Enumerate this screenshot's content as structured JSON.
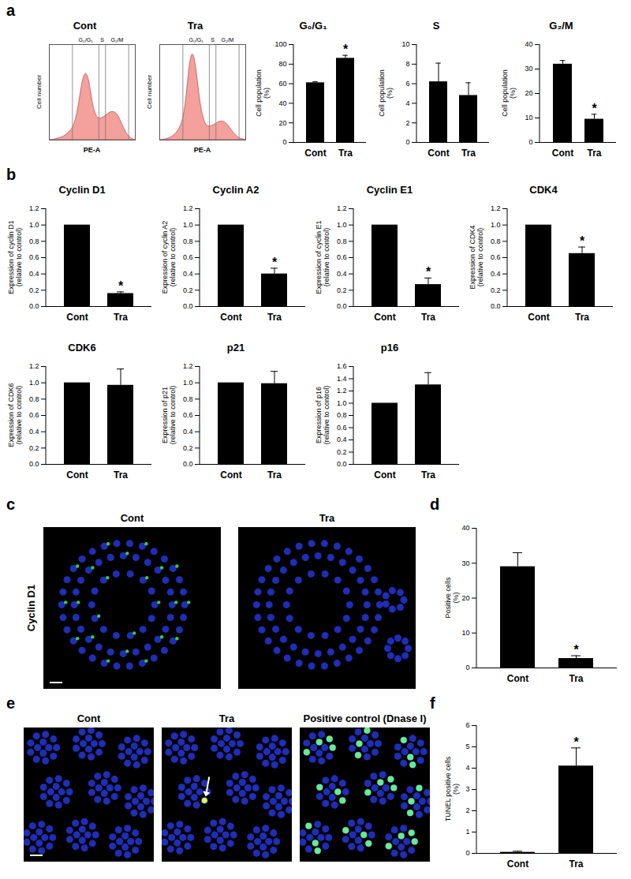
{
  "chart_data": [
    {
      "panel": "a",
      "type": "area",
      "title": "Cont",
      "xlabel": "PE-A",
      "ylabel": "Cell number",
      "x": [
        0,
        10000,
        20000,
        30000,
        40000,
        50000,
        60000,
        70000,
        80000,
        90000,
        100000,
        110000,
        120000,
        130000,
        140000,
        150000,
        160000,
        170000,
        180000,
        190000,
        200000,
        210000,
        220000,
        230000,
        240000,
        250000,
        260000
      ],
      "values": [
        0,
        0,
        1,
        2,
        3,
        5,
        8,
        12,
        20,
        38,
        62,
        72,
        65,
        40,
        26,
        22,
        23,
        25,
        28,
        30,
        29,
        25,
        17,
        9,
        4,
        1,
        0
      ],
      "xlim": [
        0,
        260000
      ],
      "ylim": [
        0,
        100
      ],
      "tick_labels": false,
      "color": "#f4a09c",
      "gates": [
        70000,
        150000,
        170000,
        240000
      ],
      "gate_labels": [
        "G₀/G₁",
        "S",
        "G₂/M"
      ]
    },
    {
      "type": "area",
      "title": "Tra",
      "xlabel": "PE-A",
      "ylabel": "Cell number",
      "x": [
        0,
        10000,
        20000,
        30000,
        40000,
        50000,
        60000,
        70000,
        80000,
        90000,
        100000,
        110000,
        120000,
        130000,
        140000,
        150000,
        160000,
        170000,
        180000,
        190000,
        200000,
        210000,
        220000,
        230000,
        240000,
        250000,
        260000
      ],
      "values": [
        0,
        0,
        1,
        2,
        4,
        7,
        12,
        20,
        40,
        80,
        95,
        78,
        45,
        25,
        15,
        14,
        15,
        17,
        19,
        20,
        18,
        14,
        9,
        5,
        2,
        1,
        0
      ],
      "xlim": [
        0,
        260000
      ],
      "ylim": [
        0,
        100
      ],
      "tick_labels": false,
      "color": "#f4a09c",
      "gates": [
        70000,
        150000,
        170000,
        240000
      ],
      "gate_labels": [
        "G₀/G₁",
        "S",
        "G₂/M"
      ]
    },
    {
      "type": "bar",
      "title": "G₀/G₁",
      "ylabel": "Cell population (%)",
      "categories": [
        "Cont",
        "Tra"
      ],
      "values": [
        61,
        86
      ],
      "errors": [
        1,
        3
      ],
      "ylim": [
        0,
        100
      ],
      "yticks": [
        0,
        20,
        40,
        60,
        80,
        100
      ],
      "color": "#000000",
      "annotations": [
        {
          "category": "Tra",
          "text": "*"
        }
      ]
    },
    {
      "type": "bar",
      "title": "S",
      "ylabel": "Cell population (%)",
      "categories": [
        "Cont",
        "Tra"
      ],
      "values": [
        6.2,
        4.8
      ],
      "errors": [
        1.9,
        1.3
      ],
      "ylim": [
        0,
        10
      ],
      "yticks": [
        0,
        2,
        4,
        6,
        8,
        10
      ],
      "color": "#000000",
      "annotations": []
    },
    {
      "type": "bar",
      "title": "G₂/M",
      "ylabel": "Cell population (%)",
      "categories": [
        "Cont",
        "Tra"
      ],
      "values": [
        32,
        9.5
      ],
      "errors": [
        1.5,
        2
      ],
      "ylim": [
        0,
        40
      ],
      "yticks": [
        0,
        10,
        20,
        30,
        40
      ],
      "color": "#000000",
      "annotations": [
        {
          "category": "Tra",
          "text": "*"
        }
      ]
    },
    {
      "panel": "b",
      "type": "bar",
      "title": "Cyclin D1",
      "ylabel": "Expression of cyclin D1 (relative to control)",
      "categories": [
        "Cont",
        "Tra"
      ],
      "values": [
        1,
        0.16
      ],
      "errors": [
        0,
        0.02
      ],
      "ylim": [
        0,
        1.2
      ],
      "yticks": [
        {
          "value": 0,
          "label": "0.0"
        },
        0.2,
        0.4,
        0.6,
        0.8,
        {
          "value": 1,
          "label": "1.0"
        },
        1.2
      ],
      "color": "#000000",
      "annotations": [
        {
          "category": "Tra",
          "text": "*"
        }
      ]
    },
    {
      "type": "bar",
      "title": "Cyclin A2",
      "ylabel": "Expression of cyclin A2 (relative to control)",
      "categories": [
        "Cont",
        "Tra"
      ],
      "values": [
        1,
        0.4
      ],
      "errors": [
        0,
        0.07
      ],
      "ylim": [
        0,
        1.2
      ],
      "yticks": [
        {
          "value": 0,
          "label": "0.0"
        },
        0.2,
        0.4,
        0.6,
        0.8,
        {
          "value": 1,
          "label": "1.0"
        },
        1.2
      ],
      "color": "#000000",
      "annotations": [
        {
          "category": "Tra",
          "text": "*"
        }
      ]
    },
    {
      "type": "bar",
      "title": "Cyclin E1",
      "ylabel": "Expression of cyclin E1 (relative to control)",
      "categories": [
        "Cont",
        "Tra"
      ],
      "values": [
        1,
        0.27
      ],
      "errors": [
        0,
        0.08
      ],
      "ylim": [
        0,
        1.2
      ],
      "yticks": [
        {
          "value": 0,
          "label": "0.0"
        },
        0.2,
        0.4,
        0.6,
        0.8,
        {
          "value": 1,
          "label": "1.0"
        },
        1.2
      ],
      "color": "#000000",
      "annotations": [
        {
          "category": "Tra",
          "text": "*"
        }
      ]
    },
    {
      "type": "bar",
      "title": "CDK4",
      "ylabel": "Expression of CDK4 (relative to control)",
      "categories": [
        "Cont",
        "Tra"
      ],
      "values": [
        1,
        0.65
      ],
      "errors": [
        0,
        0.08
      ],
      "ylim": [
        0,
        1.2
      ],
      "yticks": [
        {
          "value": 0,
          "label": "0.0"
        },
        0.2,
        0.4,
        0.6,
        0.8,
        {
          "value": 1,
          "label": "1.0"
        },
        1.2
      ],
      "color": "#000000",
      "annotations": [
        {
          "category": "Tra",
          "text": "*"
        }
      ]
    },
    {
      "type": "bar",
      "title": "CDK6",
      "ylabel": "Expression of CDK6 (relative to control)",
      "categories": [
        "Cont",
        "Tra"
      ],
      "values": [
        1,
        0.97
      ],
      "errors": [
        0,
        0.2
      ],
      "ylim": [
        0,
        1.2
      ],
      "yticks": [
        {
          "value": 0,
          "label": "0.0"
        },
        0.2,
        0.4,
        0.6,
        0.8,
        {
          "value": 1,
          "label": "1.0"
        },
        1.2
      ],
      "color": "#000000",
      "annotations": []
    },
    {
      "type": "bar",
      "title": "p21",
      "ylabel": "Expression of p21 (relative to control)",
      "categories": [
        "Cont",
        "Tra"
      ],
      "values": [
        1,
        0.99
      ],
      "errors": [
        0,
        0.15
      ],
      "ylim": [
        0,
        1.2
      ],
      "yticks": [
        {
          "value": 0,
          "label": "0.0"
        },
        0.2,
        0.4,
        0.6,
        0.8,
        {
          "value": 1,
          "label": "1.0"
        },
        1.2
      ],
      "color": "#000000",
      "annotations": []
    },
    {
      "type": "bar",
      "title": "p16",
      "ylabel": "Expression of p16 (relative to control)",
      "categories": [
        "Cont",
        "Tra"
      ],
      "values": [
        1,
        1.3
      ],
      "errors": [
        0,
        0.2
      ],
      "ylim": [
        0,
        1.6
      ],
      "yticks": [
        {
          "value": 0,
          "label": "0.0"
        },
        0.2,
        0.4,
        0.6,
        0.8,
        {
          "value": 1,
          "label": "1.0"
        },
        1.2,
        1.4,
        1.6
      ],
      "color": "#000000",
      "annotations": []
    },
    {
      "panel": "d",
      "type": "bar",
      "ylabel": "Positive cells (%)",
      "categories": [
        "Cont",
        "Tra"
      ],
      "values": [
        29,
        2.7
      ],
      "errors": [
        4,
        0.8
      ],
      "ylim": [
        0,
        40
      ],
      "yticks": [
        0,
        10,
        20,
        30,
        40
      ],
      "color": "#000000",
      "annotations": [
        {
          "category": "Tra",
          "text": "*"
        }
      ]
    },
    {
      "panel": "f",
      "type": "bar",
      "ylabel": "TUNEL positive cells (%)",
      "categories": [
        "Cont",
        "Tra"
      ],
      "values": [
        0.05,
        4.1
      ],
      "errors": [
        0.05,
        0.85
      ],
      "ylim": [
        0,
        6
      ],
      "yticks": [
        0,
        1,
        2,
        3,
        4,
        5,
        6
      ],
      "color": "#000000",
      "annotations": [
        {
          "category": "Tra",
          "text": "*"
        }
      ]
    }
  ],
  "images": [
    {
      "panel": "c",
      "row_label": "Cyclin D1",
      "titles": [
        "Cont",
        "Tra"
      ]
    },
    {
      "panel": "e",
      "titles": [
        "Cont",
        "Tra",
        "Positive control (Dnase I)"
      ]
    }
  ]
}
